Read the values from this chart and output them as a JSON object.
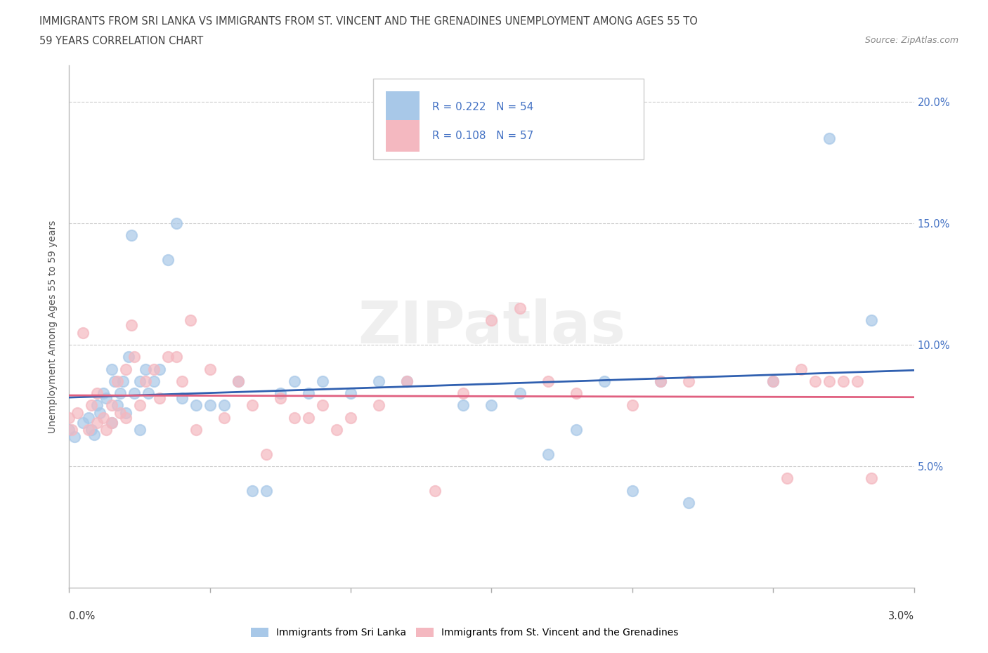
{
  "title_line1": "IMMIGRANTS FROM SRI LANKA VS IMMIGRANTS FROM ST. VINCENT AND THE GRENADINES UNEMPLOYMENT AMONG AGES 55 TO",
  "title_line2": "59 YEARS CORRELATION CHART",
  "source": "Source: ZipAtlas.com",
  "ylabel": "Unemployment Among Ages 55 to 59 years",
  "xlim": [
    0.0,
    3.0
  ],
  "ylim": [
    0.0,
    21.5
  ],
  "yticks": [
    5.0,
    10.0,
    15.0,
    20.0
  ],
  "xticks": [
    0.0,
    0.5,
    1.0,
    1.5,
    2.0,
    2.5,
    3.0
  ],
  "series1_name": "Immigrants from Sri Lanka",
  "series1_color": "#a8c8e8",
  "series1_R": 0.222,
  "series1_N": 54,
  "series2_name": "Immigrants from St. Vincent and the Grenadines",
  "series2_color": "#f4b8c0",
  "series2_R": 0.108,
  "series2_N": 57,
  "trend1_color": "#3060b0",
  "trend2_color": "#e06080",
  "legend_text_color": "#4472C4",
  "ytick_color": "#4472C4",
  "watermark": "ZIPatlas",
  "series1_x": [
    0.0,
    0.02,
    0.05,
    0.07,
    0.08,
    0.09,
    0.1,
    0.11,
    0.12,
    0.13,
    0.15,
    0.15,
    0.16,
    0.17,
    0.18,
    0.19,
    0.2,
    0.21,
    0.22,
    0.23,
    0.25,
    0.25,
    0.27,
    0.28,
    0.3,
    0.32,
    0.35,
    0.38,
    0.4,
    0.45,
    0.5,
    0.55,
    0.6,
    0.65,
    0.7,
    0.75,
    0.8,
    0.85,
    0.9,
    1.0,
    1.1,
    1.2,
    1.4,
    1.5,
    1.6,
    1.7,
    1.8,
    1.9,
    2.0,
    2.1,
    2.2,
    2.5,
    2.7,
    2.85
  ],
  "series1_y": [
    6.5,
    6.2,
    6.8,
    7.0,
    6.5,
    6.3,
    7.5,
    7.2,
    8.0,
    7.8,
    9.0,
    6.8,
    8.5,
    7.5,
    8.0,
    8.5,
    7.2,
    9.5,
    14.5,
    8.0,
    8.5,
    6.5,
    9.0,
    8.0,
    8.5,
    9.0,
    13.5,
    15.0,
    7.8,
    7.5,
    7.5,
    7.5,
    8.5,
    4.0,
    4.0,
    8.0,
    8.5,
    8.0,
    8.5,
    8.0,
    8.5,
    8.5,
    7.5,
    7.5,
    8.0,
    5.5,
    6.5,
    8.5,
    4.0,
    8.5,
    3.5,
    8.5,
    18.5,
    11.0
  ],
  "series2_x": [
    0.0,
    0.01,
    0.03,
    0.05,
    0.07,
    0.08,
    0.1,
    0.1,
    0.12,
    0.13,
    0.15,
    0.15,
    0.17,
    0.18,
    0.2,
    0.2,
    0.22,
    0.23,
    0.25,
    0.27,
    0.3,
    0.32,
    0.35,
    0.38,
    0.4,
    0.43,
    0.45,
    0.5,
    0.55,
    0.6,
    0.65,
    0.7,
    0.75,
    0.8,
    0.85,
    0.9,
    0.95,
    1.0,
    1.1,
    1.2,
    1.3,
    1.4,
    1.5,
    1.6,
    1.7,
    1.8,
    2.0,
    2.1,
    2.2,
    2.5,
    2.55,
    2.6,
    2.65,
    2.7,
    2.75,
    2.8,
    2.85
  ],
  "series2_y": [
    7.0,
    6.5,
    7.2,
    10.5,
    6.5,
    7.5,
    6.8,
    8.0,
    7.0,
    6.5,
    6.8,
    7.5,
    8.5,
    7.2,
    7.0,
    9.0,
    10.8,
    9.5,
    7.5,
    8.5,
    9.0,
    7.8,
    9.5,
    9.5,
    8.5,
    11.0,
    6.5,
    9.0,
    7.0,
    8.5,
    7.5,
    5.5,
    7.8,
    7.0,
    7.0,
    7.5,
    6.5,
    7.0,
    7.5,
    8.5,
    4.0,
    8.0,
    11.0,
    11.5,
    8.5,
    8.0,
    7.5,
    8.5,
    8.5,
    8.5,
    4.5,
    9.0,
    8.5,
    8.5,
    8.5,
    8.5,
    4.5
  ]
}
